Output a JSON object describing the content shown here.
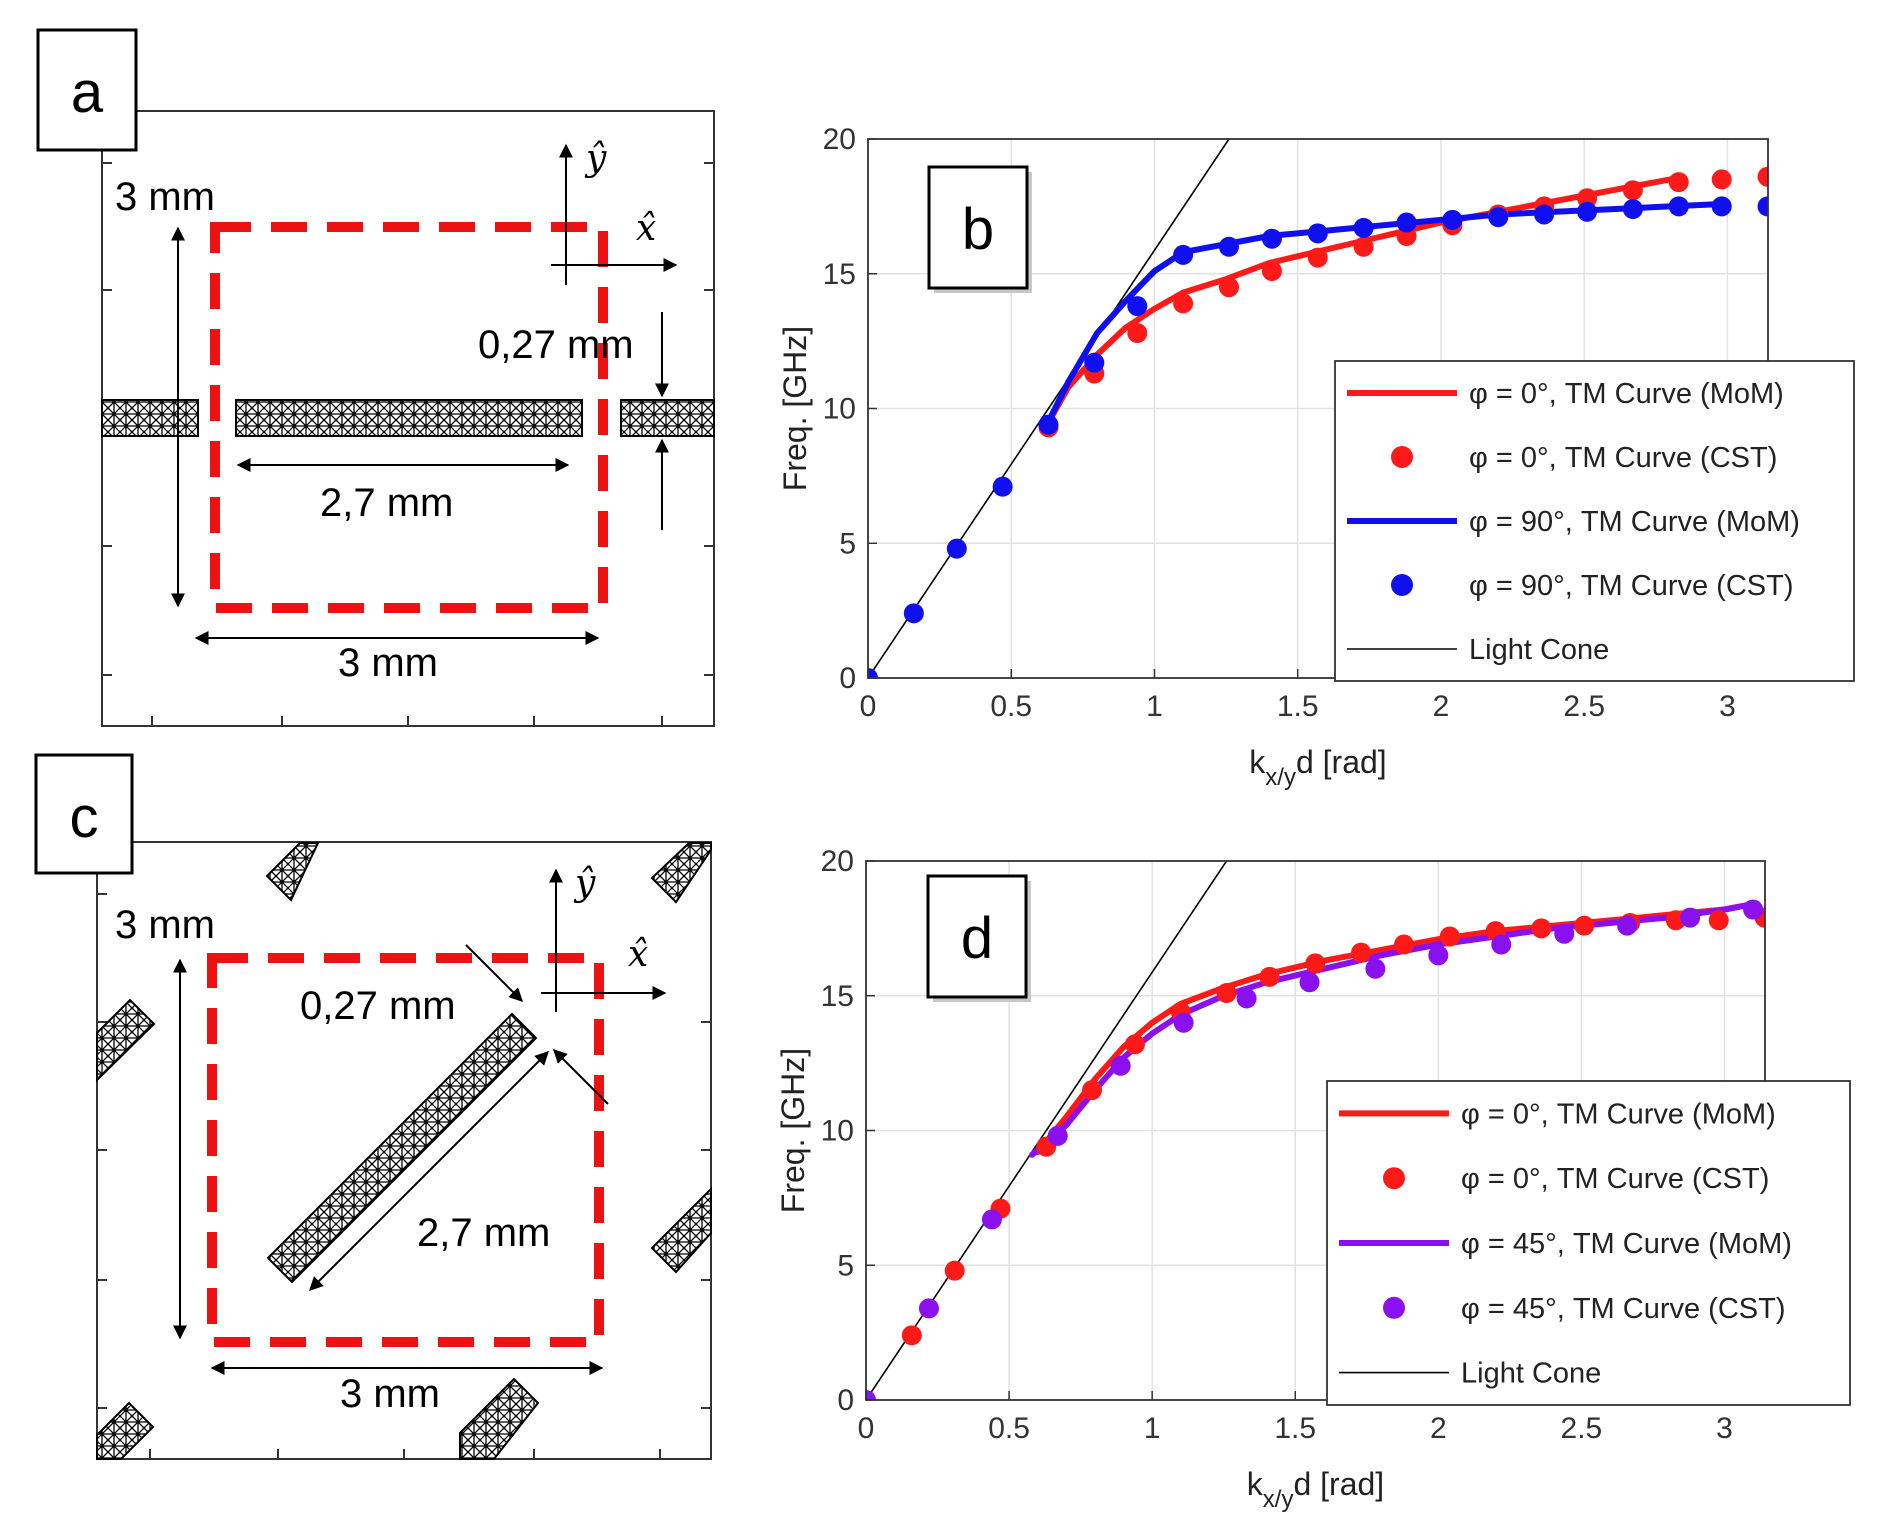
{
  "panels": {
    "a": {
      "label": "a",
      "dim_height": "3 mm",
      "dim_width": "3 mm",
      "dim_strip_length": "2,7 mm",
      "dim_strip_width": "0,27 mm",
      "axis_x": "x̂",
      "axis_y": "ŷ"
    },
    "c": {
      "label": "c",
      "dim_height": "3 mm",
      "dim_width": "3 mm",
      "dim_strip_length": "2,7 mm",
      "dim_strip_width": "0,27 mm",
      "axis_x": "x̂",
      "axis_y": "ŷ"
    }
  },
  "colors": {
    "red": "#ff1a1a",
    "blue": "#1010ee",
    "purple": "#8a10f0",
    "cell_border": "#ee1111",
    "light_cone": "#000000"
  },
  "chart_data": [
    {
      "id": "b",
      "label": "b",
      "type": "line",
      "xlabel": "k",
      "xlabel_sub": "x/y",
      "xlabel_rest": "d [rad]",
      "ylabel": "Freq. [GHz]",
      "xlim": [
        0,
        3.1416
      ],
      "ylim": [
        0,
        20
      ],
      "xticks": [
        "0",
        "0.5",
        "1",
        "1.5",
        "2",
        "2.5",
        "3"
      ],
      "xtick_values": [
        0,
        0.5,
        1,
        1.5,
        2,
        2.5,
        3
      ],
      "yticks": [
        "0",
        "5",
        "10",
        "15",
        "20"
      ],
      "ytick_values": [
        0,
        5,
        10,
        15,
        20
      ],
      "grid": true,
      "legend_position": "lower-right",
      "light_cone": {
        "name": "Light Cone",
        "x": [
          0,
          1.26
        ],
        "y": [
          0,
          20
        ]
      },
      "series": [
        {
          "name": "φ = 0°, TM Curve (MoM)",
          "style": "line",
          "color": "#ff1a1a",
          "x": [
            0.62,
            0.7,
            0.8,
            0.9,
            1.0,
            1.1,
            1.25,
            1.4,
            1.6,
            1.8,
            2.0,
            2.2,
            2.4,
            2.6,
            2.8
          ],
          "y": [
            9.3,
            10.8,
            12.0,
            13.0,
            13.7,
            14.3,
            14.8,
            15.4,
            15.9,
            16.4,
            16.9,
            17.3,
            17.7,
            18.1,
            18.5
          ]
        },
        {
          "name": "φ = 0°, TM Curve (CST)",
          "style": "markers",
          "color": "#ff1a1a",
          "x": [
            0.63,
            0.79,
            0.94,
            1.1,
            1.26,
            1.41,
            1.57,
            1.73,
            1.88,
            2.04,
            2.2,
            2.36,
            2.51,
            2.67,
            2.83,
            2.98,
            3.14
          ],
          "y": [
            9.3,
            11.3,
            12.8,
            13.9,
            14.5,
            15.1,
            15.6,
            16.0,
            16.4,
            16.8,
            17.2,
            17.5,
            17.8,
            18.1,
            18.4,
            18.5,
            18.6
          ]
        },
        {
          "name": "φ = 90°, TM Curve (MoM)",
          "style": "line",
          "color": "#1010ee",
          "x": [
            0.62,
            0.7,
            0.8,
            0.9,
            1.0,
            1.1,
            1.25,
            1.4,
            1.6,
            1.8,
            2.0,
            2.2,
            2.4,
            2.6,
            2.8,
            3.0
          ],
          "y": [
            9.3,
            11.0,
            12.8,
            14.0,
            15.1,
            15.8,
            16.1,
            16.4,
            16.6,
            16.8,
            17.0,
            17.2,
            17.3,
            17.4,
            17.5,
            17.6
          ]
        },
        {
          "name": "φ = 90°, TM Curve (CST)",
          "style": "markers",
          "color": "#1010ee",
          "x": [
            0,
            0.16,
            0.31,
            0.47,
            0.63,
            0.79,
            0.94,
            1.1,
            1.26,
            1.41,
            1.57,
            1.73,
            1.88,
            2.04,
            2.2,
            2.36,
            2.51,
            2.67,
            2.83,
            2.98,
            3.14
          ],
          "y": [
            0,
            2.4,
            4.8,
            7.1,
            9.4,
            11.7,
            13.8,
            15.7,
            16.0,
            16.3,
            16.5,
            16.7,
            16.9,
            17.0,
            17.1,
            17.2,
            17.3,
            17.4,
            17.5,
            17.5,
            17.5
          ]
        }
      ]
    },
    {
      "id": "d",
      "label": "d",
      "type": "line",
      "xlabel": "k",
      "xlabel_sub": "x/y",
      "xlabel_rest": "d [rad]",
      "ylabel": "Freq. [GHz]",
      "xlim": [
        0,
        3.1416
      ],
      "ylim": [
        0,
        20
      ],
      "xticks": [
        "0",
        "0.5",
        "1",
        "1.5",
        "2",
        "2.5",
        "3"
      ],
      "xtick_values": [
        0,
        0.5,
        1,
        1.5,
        2,
        2.5,
        3
      ],
      "yticks": [
        "0",
        "5",
        "10",
        "15",
        "20"
      ],
      "ytick_values": [
        0,
        5,
        10,
        15,
        20
      ],
      "grid": true,
      "legend_position": "lower-right",
      "light_cone": {
        "name": "Light Cone",
        "x": [
          0,
          1.26
        ],
        "y": [
          0,
          20
        ]
      },
      "series": [
        {
          "name": "φ = 0°, TM Curve (MoM)",
          "style": "line",
          "color": "#ff1a1a",
          "x": [
            0.6,
            0.7,
            0.8,
            0.9,
            1.0,
            1.1,
            1.25,
            1.4,
            1.6,
            1.8,
            2.0,
            2.2,
            2.4,
            2.6,
            2.8,
            3.0,
            3.1
          ],
          "y": [
            9.2,
            10.5,
            11.9,
            13.1,
            14.0,
            14.7,
            15.3,
            15.8,
            16.3,
            16.7,
            17.1,
            17.4,
            17.6,
            17.8,
            18.0,
            18.2,
            18.4
          ]
        },
        {
          "name": "φ = 0°, TM Curve (CST)",
          "style": "markers",
          "color": "#ff1a1a",
          "x": [
            0.16,
            0.31,
            0.47,
            0.63,
            0.79,
            0.94,
            1.1,
            1.26,
            1.41,
            1.57,
            1.73,
            1.88,
            2.04,
            2.2,
            2.36,
            2.51,
            2.67,
            2.83,
            2.98,
            3.14
          ],
          "y": [
            2.4,
            4.8,
            7.1,
            9.4,
            11.5,
            13.2,
            14.4,
            15.1,
            15.7,
            16.2,
            16.6,
            16.9,
            17.2,
            17.4,
            17.5,
            17.6,
            17.7,
            17.8,
            17.8,
            17.9
          ]
        },
        {
          "name": "φ = 45°, TM Curve (MoM)",
          "style": "line",
          "color": "#8a10f0",
          "x": [
            0.58,
            0.7,
            0.8,
            0.9,
            1.0,
            1.1,
            1.25,
            1.4,
            1.6,
            1.8,
            2.0,
            2.2,
            2.4,
            2.6,
            2.8,
            3.0,
            3.1
          ],
          "y": [
            9.1,
            10.2,
            11.5,
            12.7,
            13.6,
            14.3,
            15.0,
            15.5,
            16.0,
            16.5,
            16.9,
            17.2,
            17.5,
            17.7,
            17.9,
            18.2,
            18.4
          ]
        },
        {
          "name": "φ = 45°, TM Curve (CST)",
          "style": "markers",
          "color": "#8a10f0",
          "x": [
            0,
            0.22,
            0.44,
            0.67,
            0.89,
            1.11,
            1.33,
            1.55,
            1.78,
            2.0,
            2.22,
            2.44,
            2.66,
            2.88,
            3.1
          ],
          "y": [
            0,
            3.4,
            6.7,
            9.8,
            12.4,
            14.0,
            14.9,
            15.5,
            16.0,
            16.5,
            16.9,
            17.3,
            17.6,
            17.9,
            18.2
          ]
        }
      ]
    }
  ]
}
